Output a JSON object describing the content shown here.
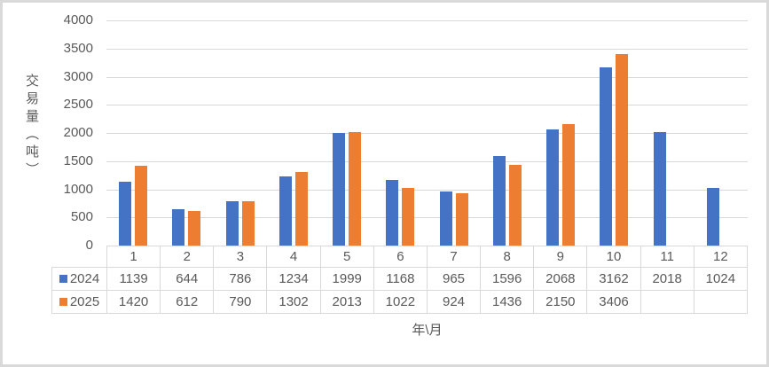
{
  "chart_data": {
    "type": "bar",
    "title": "",
    "categories": [
      "1",
      "2",
      "3",
      "4",
      "5",
      "6",
      "7",
      "8",
      "9",
      "10",
      "11",
      "12"
    ],
    "series": [
      {
        "name": "2024",
        "color": "#4472C4",
        "values": [
          1139,
          644,
          786,
          1234,
          1999,
          1168,
          965,
          1596,
          2068,
          3162,
          2018,
          1024
        ]
      },
      {
        "name": "2025",
        "color": "#ED7D31",
        "values": [
          1420,
          612,
          790,
          1302,
          2013,
          1022,
          924,
          1436,
          2150,
          3406,
          null,
          null
        ]
      }
    ],
    "xlabel": "年\\月",
    "ylabel": "交易量（吨）",
    "ylim": [
      0,
      4000
    ],
    "ytick_step": 500,
    "grid": true,
    "legend_position": "data-table-left"
  },
  "colors": {
    "series_2024": "#4472C4",
    "series_2025": "#ED7D31",
    "gridline": "#D9D9D9",
    "text": "#595959",
    "frame_border": "#D9D9D9"
  }
}
